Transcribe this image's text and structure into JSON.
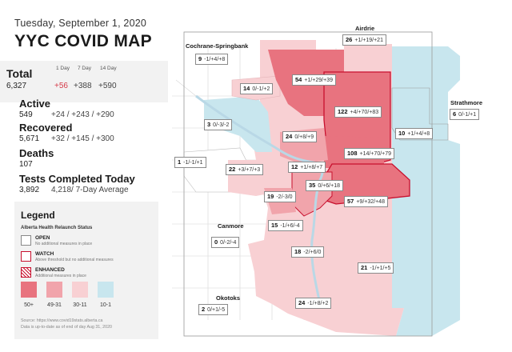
{
  "header": {
    "date": "Tuesday, September 1, 2020",
    "title": "YYC COVID MAP"
  },
  "stats": {
    "total": {
      "label": "Total",
      "value": "6,327",
      "col_headers": [
        "1 Day",
        "7 Day",
        "14 Day"
      ],
      "changes": [
        "+56",
        "+388",
        "+590"
      ]
    },
    "active": {
      "label": "Active",
      "value": "549",
      "changes": "+24 / +243 / +290"
    },
    "recovered": {
      "label": "Recovered",
      "value": "5,671",
      "changes": "+32 / +145 / +300"
    },
    "deaths": {
      "label": "Deaths",
      "value": "107"
    },
    "tests": {
      "label": "Tests Completed Today",
      "value": "3,892",
      "average": "4,218/ 7-Day Average"
    }
  },
  "legend": {
    "title": "Legend",
    "subtitle": "Alberta Health Relaunch Status",
    "statuses": [
      {
        "name": "OPEN",
        "desc": "No additional measures in place",
        "style": "open"
      },
      {
        "name": "WATCH",
        "desc": "Above threshold but no additional measures",
        "style": "watch"
      },
      {
        "name": "ENHANCED",
        "desc": "Additional measures in place",
        "style": "enhanced"
      }
    ],
    "scale": [
      {
        "label": "50+",
        "color": "#e8737f"
      },
      {
        "label": "49-31",
        "color": "#f1a4ab"
      },
      {
        "label": "30-11",
        "color": "#f8d0d3"
      },
      {
        "label": "10-1",
        "color": "#c8e6ee"
      }
    ],
    "source": "Source: https://www.covid19stats.alberta.ca",
    "asof": "Data is up-to-date as of end of day Aug 31, 2020"
  },
  "colors": {
    "high": "#e8737f",
    "mid": "#f1a4ab",
    "low": "#f8d0d3",
    "lowest": "#c8e6ee",
    "watch_border": "#c8102e",
    "river": "#cfe4ee"
  },
  "map": {
    "towns": [
      "Airdrie",
      "Cochrane-Springbank",
      "Strathmore",
      "Canmore",
      "Okotoks"
    ],
    "regions": [
      {
        "id": "airdrie",
        "count": "26",
        "changes": "+1/+19/+21"
      },
      {
        "id": "cochrane",
        "count": "9",
        "changes": "-1/+4/+8"
      },
      {
        "id": "strathmore",
        "count": "6",
        "changes": "0/-1/+1"
      },
      {
        "id": "canmore",
        "count": "0",
        "changes": "0/-2/-4"
      },
      {
        "id": "okotoks",
        "count": "2",
        "changes": "0/+1/-5"
      },
      {
        "id": "north",
        "count": "54",
        "changes": "+1/+29/+39"
      },
      {
        "id": "nw-upper",
        "count": "14",
        "changes": "0/-1/+2"
      },
      {
        "id": "northeast",
        "count": "122",
        "changes": "+4/+70/+83"
      },
      {
        "id": "east",
        "count": "10",
        "changes": "+1/+4/+8"
      },
      {
        "id": "west-bow",
        "count": "3",
        "changes": "0/-3/-2"
      },
      {
        "id": "nw-central",
        "count": "24",
        "changes": "0/+8/+9"
      },
      {
        "id": "ne-central",
        "count": "108",
        "changes": "+14/+70/+79"
      },
      {
        "id": "far-west",
        "count": "1",
        "changes": "-1/-1/+1"
      },
      {
        "id": "west",
        "count": "22",
        "changes": "+3/+7/+3"
      },
      {
        "id": "centre",
        "count": "12",
        "changes": "+1/+8/+7"
      },
      {
        "id": "centre-east",
        "count": "35",
        "changes": "0/+6/+18"
      },
      {
        "id": "sw-central",
        "count": "19",
        "changes": "-2/-3/0"
      },
      {
        "id": "southeast",
        "count": "57",
        "changes": "+9/+32/+48"
      },
      {
        "id": "sw",
        "count": "15",
        "changes": "-1/+6/-4"
      },
      {
        "id": "south",
        "count": "18",
        "changes": "-2/+6/0"
      },
      {
        "id": "se-lower",
        "count": "21",
        "changes": "-1/+1/+5"
      },
      {
        "id": "far-south",
        "count": "24",
        "changes": "-1/+8/+2"
      }
    ]
  }
}
